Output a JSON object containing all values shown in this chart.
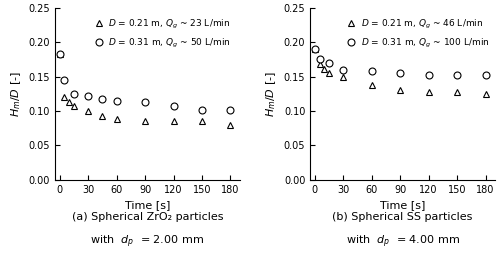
{
  "left": {
    "triangle": {
      "x": [
        0,
        5,
        10,
        15,
        30,
        45,
        60,
        90,
        120,
        150,
        180
      ],
      "y": [
        0.183,
        0.12,
        0.113,
        0.107,
        0.1,
        0.093,
        0.088,
        0.086,
        0.085,
        0.085,
        0.079
      ]
    },
    "circle": {
      "x": [
        0,
        5,
        15,
        30,
        45,
        60,
        90,
        120,
        150,
        180
      ],
      "y": [
        0.183,
        0.145,
        0.125,
        0.122,
        0.118,
        0.115,
        0.113,
        0.107,
        0.102,
        0.102
      ]
    },
    "legend_triangle": "$D$ = 0.21 m, $Q_g$ ~ 23 L/min",
    "legend_circle": "$D$ = 0.31 m, $Q_g$ ~ 50 L/min",
    "subtitle_line1": "(a) Spherical ZrO₂ particles",
    "subtitle_line2": "with  $d_p$  = 2.00 mm"
  },
  "right": {
    "triangle": {
      "x": [
        0,
        5,
        10,
        15,
        30,
        60,
        90,
        120,
        150,
        180
      ],
      "y": [
        0.19,
        0.168,
        0.161,
        0.155,
        0.15,
        0.138,
        0.13,
        0.127,
        0.127,
        0.124
      ]
    },
    "circle": {
      "x": [
        0,
        5,
        15,
        30,
        60,
        90,
        120,
        150,
        180
      ],
      "y": [
        0.19,
        0.175,
        0.17,
        0.16,
        0.158,
        0.155,
        0.153,
        0.153,
        0.153
      ]
    },
    "legend_triangle": "$D$ = 0.21 m, $Q_g$ ~ 46 L/min",
    "legend_circle": "$D$ = 0.31 m, $Q_g$ ~ 100 L/min",
    "subtitle_line1": "(b) Spherical SS particles",
    "subtitle_line2": "with  $d_p$  = 4.00 mm"
  },
  "ylabel": "$H_m/D$ [-]",
  "xlabel": "Time [s]",
  "ylim": [
    0.0,
    0.25
  ],
  "xlim": [
    -5,
    190
  ],
  "xticks": [
    0,
    30,
    60,
    90,
    120,
    150,
    180
  ],
  "yticks": [
    0.0,
    0.05,
    0.1,
    0.15,
    0.2,
    0.25
  ],
  "marker_size": 5,
  "figsize": [
    5.0,
    2.57
  ],
  "dpi": 100
}
